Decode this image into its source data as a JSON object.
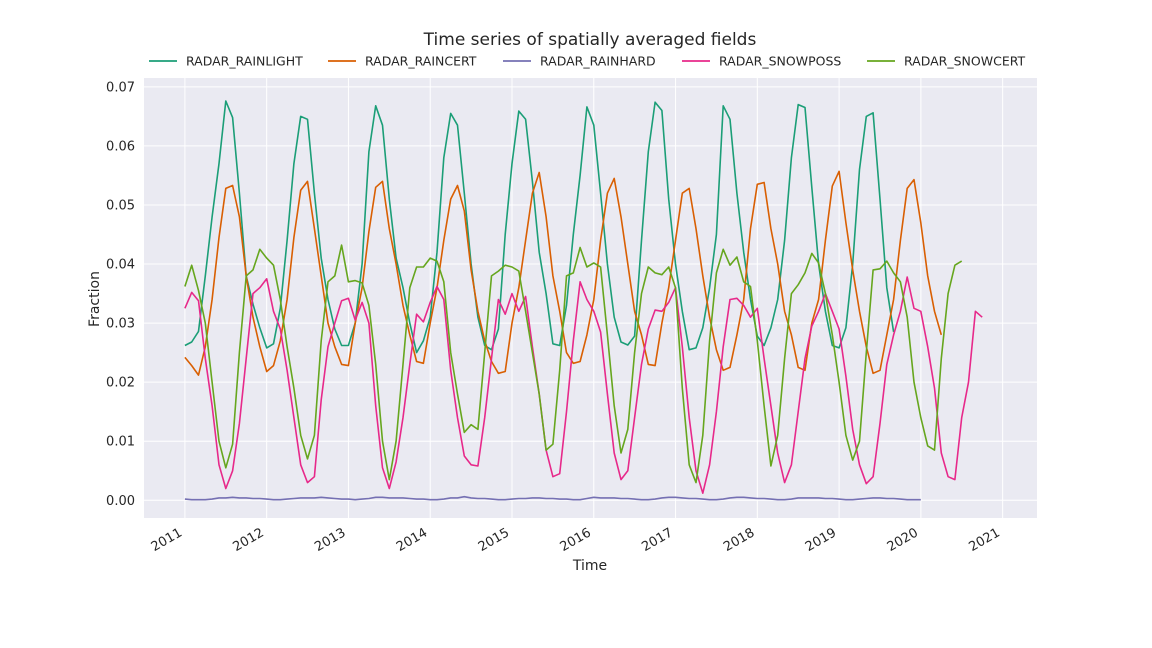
{
  "chart_data": {
    "type": "line",
    "title": "Time series of spatially averaged fields",
    "xlabel": "Time",
    "ylabel": "Fraction",
    "ylim": [
      -0.003,
      0.0715
    ],
    "xlim": [
      2010.5,
      2021.42
    ],
    "yticks": [
      0.0,
      0.01,
      0.02,
      0.03,
      0.04,
      0.05,
      0.06,
      0.07
    ],
    "ytick_labels": [
      "0.00",
      "0.01",
      "0.02",
      "0.03",
      "0.04",
      "0.05",
      "0.06",
      "0.07"
    ],
    "xticks": [
      2011,
      2012,
      2013,
      2014,
      2015,
      2016,
      2017,
      2018,
      2019,
      2020,
      2021
    ],
    "xtick_labels": [
      "2011",
      "2012",
      "2013",
      "2014",
      "2015",
      "2016",
      "2017",
      "2018",
      "2019",
      "2020",
      "2021"
    ],
    "x_start": 2011.0,
    "x_step": 0.08333,
    "legend_position": "top-center",
    "grid": true,
    "series": [
      {
        "name": "RADAR_RAINLIGHT",
        "color": "#1b9e77",
        "values": [
          0.0262,
          0.0268,
          0.0286,
          0.038,
          0.048,
          0.057,
          0.0676,
          0.0648,
          0.052,
          0.038,
          0.0332,
          0.0292,
          0.0258,
          0.0265,
          0.0325,
          0.044,
          0.057,
          0.065,
          0.0645,
          0.052,
          0.041,
          0.034,
          0.029,
          0.0262,
          0.0262,
          0.03,
          0.04,
          0.059,
          0.0668,
          0.0635,
          0.051,
          0.041,
          0.036,
          0.03,
          0.025,
          0.027,
          0.031,
          0.042,
          0.058,
          0.0655,
          0.0635,
          0.052,
          0.04,
          0.031,
          0.0262,
          0.0255,
          0.029,
          0.045,
          0.057,
          0.0659,
          0.0645,
          0.054,
          0.042,
          0.035,
          0.0265,
          0.0262,
          0.033,
          0.045,
          0.055,
          0.0666,
          0.0635,
          0.052,
          0.04,
          0.031,
          0.0268,
          0.0263,
          0.0278,
          0.044,
          0.059,
          0.0674,
          0.066,
          0.051,
          0.04,
          0.032,
          0.0255,
          0.0258,
          0.0292,
          0.036,
          0.045,
          0.0668,
          0.0645,
          0.052,
          0.042,
          0.034,
          0.0278,
          0.0262,
          0.0292,
          0.034,
          0.044,
          0.058,
          0.067,
          0.0665,
          0.053,
          0.04,
          0.032,
          0.0262,
          0.0258,
          0.0292,
          0.04,
          0.056,
          0.065,
          0.0656,
          0.051,
          0.036,
          0.0285
        ]
      },
      {
        "name": "RADAR_RAINCERT",
        "color": "#d95f02",
        "values": [
          0.0242,
          0.0228,
          0.0212,
          0.026,
          0.034,
          0.0445,
          0.0528,
          0.0533,
          0.048,
          0.038,
          0.031,
          0.026,
          0.0218,
          0.0228,
          0.027,
          0.034,
          0.0445,
          0.0525,
          0.054,
          0.046,
          0.038,
          0.03,
          0.026,
          0.023,
          0.0228,
          0.03,
          0.036,
          0.0455,
          0.053,
          0.054,
          0.046,
          0.04,
          0.033,
          0.028,
          0.0235,
          0.0232,
          0.03,
          0.036,
          0.044,
          0.051,
          0.0533,
          0.049,
          0.039,
          0.032,
          0.027,
          0.0235,
          0.0215,
          0.0218,
          0.03,
          0.036,
          0.044,
          0.052,
          0.0555,
          0.048,
          0.038,
          0.032,
          0.025,
          0.0232,
          0.0235,
          0.028,
          0.034,
          0.044,
          0.052,
          0.0545,
          0.048,
          0.04,
          0.032,
          0.028,
          0.023,
          0.0228,
          0.03,
          0.036,
          0.044,
          0.052,
          0.0528,
          0.046,
          0.038,
          0.031,
          0.0255,
          0.022,
          0.0225,
          0.028,
          0.034,
          0.046,
          0.0535,
          0.0538,
          0.046,
          0.04,
          0.032,
          0.028,
          0.0225,
          0.022,
          0.03,
          0.034,
          0.044,
          0.0532,
          0.0557,
          0.047,
          0.039,
          0.032,
          0.026,
          0.0215,
          0.022,
          0.028,
          0.034,
          0.044,
          0.0528,
          0.0543,
          0.047,
          0.038,
          0.032,
          0.028
        ]
      },
      {
        "name": "RADAR_RAINHARD",
        "color": "#7570b3",
        "values": [
          0.0002,
          0.0001,
          0.0001,
          0.0001,
          0.0002,
          0.0004,
          0.0004,
          0.0005,
          0.0004,
          0.0004,
          0.0003,
          0.0003,
          0.0002,
          0.0001,
          0.0001,
          0.0002,
          0.0003,
          0.0004,
          0.0004,
          0.0004,
          0.0005,
          0.0004,
          0.0003,
          0.0002,
          0.0002,
          0.0001,
          0.0002,
          0.0003,
          0.0005,
          0.0005,
          0.0004,
          0.0004,
          0.0004,
          0.0003,
          0.0002,
          0.0002,
          0.0001,
          0.0001,
          0.0002,
          0.0004,
          0.0004,
          0.0006,
          0.0004,
          0.0003,
          0.0003,
          0.0002,
          0.0001,
          0.0001,
          0.0002,
          0.0003,
          0.0003,
          0.0004,
          0.0004,
          0.0003,
          0.0003,
          0.0002,
          0.0002,
          0.0001,
          0.0001,
          0.0003,
          0.0005,
          0.0004,
          0.0004,
          0.0004,
          0.0003,
          0.0003,
          0.0002,
          0.0001,
          0.0001,
          0.0002,
          0.0004,
          0.0005,
          0.0005,
          0.0004,
          0.0003,
          0.0003,
          0.0002,
          0.0001,
          0.0001,
          0.0002,
          0.0004,
          0.0005,
          0.0005,
          0.0004,
          0.0003,
          0.0003,
          0.0002,
          0.0001,
          0.0001,
          0.0002,
          0.0004,
          0.0004,
          0.0004,
          0.0004,
          0.0003,
          0.0003,
          0.0002,
          0.0001,
          0.0001,
          0.0002,
          0.0003,
          0.0004,
          0.0004,
          0.0003,
          0.0003,
          0.0002,
          0.0001,
          0.0001,
          0.0001
        ]
      },
      {
        "name": "RADAR_SNOWPOSS",
        "color": "#e7298a",
        "values": [
          0.0325,
          0.0352,
          0.0338,
          0.024,
          0.016,
          0.006,
          0.002,
          0.005,
          0.013,
          0.024,
          0.035,
          0.036,
          0.0375,
          0.032,
          0.029,
          0.022,
          0.014,
          0.006,
          0.003,
          0.004,
          0.017,
          0.026,
          0.03,
          0.0338,
          0.0342,
          0.0305,
          0.0335,
          0.03,
          0.016,
          0.0055,
          0.002,
          0.0065,
          0.014,
          0.023,
          0.0315,
          0.0302,
          0.0335,
          0.0362,
          0.034,
          0.022,
          0.014,
          0.0075,
          0.006,
          0.0058,
          0.014,
          0.024,
          0.034,
          0.0315,
          0.035,
          0.032,
          0.0345,
          0.026,
          0.018,
          0.0085,
          0.004,
          0.0045,
          0.015,
          0.027,
          0.037,
          0.034,
          0.032,
          0.0285,
          0.018,
          0.008,
          0.0035,
          0.005,
          0.014,
          0.023,
          0.029,
          0.0322,
          0.032,
          0.0335,
          0.036,
          0.026,
          0.014,
          0.005,
          0.0012,
          0.006,
          0.015,
          0.026,
          0.034,
          0.0342,
          0.033,
          0.031,
          0.0325,
          0.024,
          0.016,
          0.008,
          0.003,
          0.006,
          0.015,
          0.024,
          0.0295,
          0.032,
          0.035,
          0.032,
          0.029,
          0.021,
          0.012,
          0.006,
          0.0028,
          0.004,
          0.013,
          0.023,
          0.028,
          0.032,
          0.0378,
          0.0325,
          0.032,
          0.026,
          0.019,
          0.008,
          0.004,
          0.0035,
          0.014,
          0.02,
          0.032,
          0.031
        ]
      },
      {
        "name": "RADAR_SNOWCERT",
        "color": "#66a61e",
        "values": [
          0.0362,
          0.0398,
          0.0355,
          0.03,
          0.02,
          0.01,
          0.0055,
          0.0095,
          0.025,
          0.038,
          0.039,
          0.0425,
          0.041,
          0.0398,
          0.034,
          0.026,
          0.019,
          0.011,
          0.007,
          0.011,
          0.027,
          0.037,
          0.038,
          0.0432,
          0.037,
          0.0372,
          0.0368,
          0.033,
          0.023,
          0.01,
          0.0035,
          0.01,
          0.023,
          0.036,
          0.0395,
          0.0395,
          0.041,
          0.0405,
          0.037,
          0.025,
          0.018,
          0.0115,
          0.0128,
          0.012,
          0.025,
          0.038,
          0.0388,
          0.0398,
          0.0395,
          0.0388,
          0.032,
          0.025,
          0.018,
          0.0085,
          0.0095,
          0.022,
          0.038,
          0.0385,
          0.0428,
          0.0395,
          0.0402,
          0.0395,
          0.028,
          0.016,
          0.008,
          0.012,
          0.025,
          0.035,
          0.0395,
          0.0385,
          0.0382,
          0.0395,
          0.036,
          0.019,
          0.006,
          0.003,
          0.011,
          0.027,
          0.0385,
          0.0425,
          0.0398,
          0.0412,
          0.037,
          0.0362,
          0.027,
          0.016,
          0.0058,
          0.011,
          0.024,
          0.035,
          0.0365,
          0.0385,
          0.0418,
          0.0402,
          0.035,
          0.028,
          0.02,
          0.011,
          0.0068,
          0.01,
          0.025,
          0.039,
          0.0392,
          0.0405,
          0.0385,
          0.037,
          0.031,
          0.02,
          0.014,
          0.0092,
          0.0085,
          0.024,
          0.035,
          0.0398,
          0.0405
        ]
      }
    ]
  }
}
